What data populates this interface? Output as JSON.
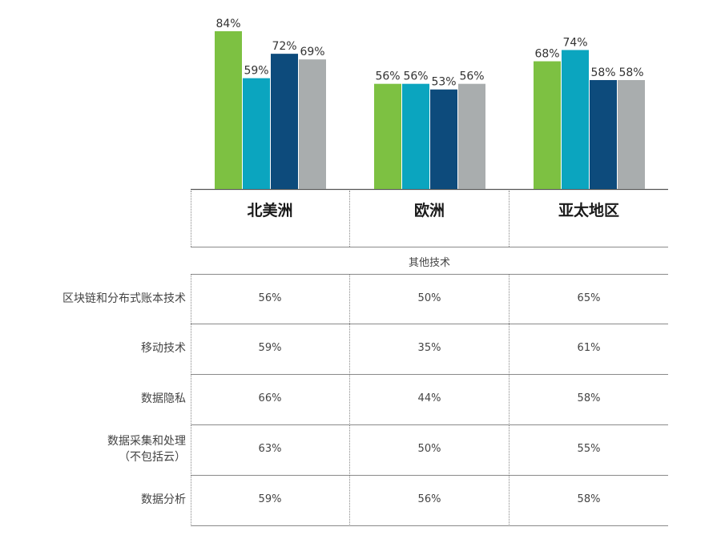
{
  "chart_data": {
    "type": "bar",
    "categories": [
      "北美洲",
      "欧洲",
      "亚太地区"
    ],
    "series": [
      {
        "color": "#7dc142",
        "values": [
          84,
          56,
          68
        ]
      },
      {
        "color": "#0ba5bf",
        "values": [
          59,
          56,
          74
        ]
      },
      {
        "color": "#0d4b7c",
        "values": [
          72,
          53,
          58
        ]
      },
      {
        "color": "#a9adae",
        "values": [
          69,
          56,
          58
        ]
      }
    ],
    "value_suffix": "%",
    "ylim": [
      0,
      85
    ]
  },
  "table": {
    "section_title": "其他技术",
    "rows": [
      {
        "label": "区块链和分布式账本技术",
        "values": [
          "56%",
          "50%",
          "65%"
        ]
      },
      {
        "label": "移动技术",
        "values": [
          "59%",
          "35%",
          "61%"
        ]
      },
      {
        "label": "数据隐私",
        "values": [
          "66%",
          "44%",
          "58%"
        ]
      },
      {
        "label": "数据采集和处理\n（不包括云）",
        "values": [
          "63%",
          "50%",
          "55%"
        ]
      },
      {
        "label": "数据分析",
        "values": [
          "59%",
          "56%",
          "58%"
        ]
      }
    ]
  }
}
